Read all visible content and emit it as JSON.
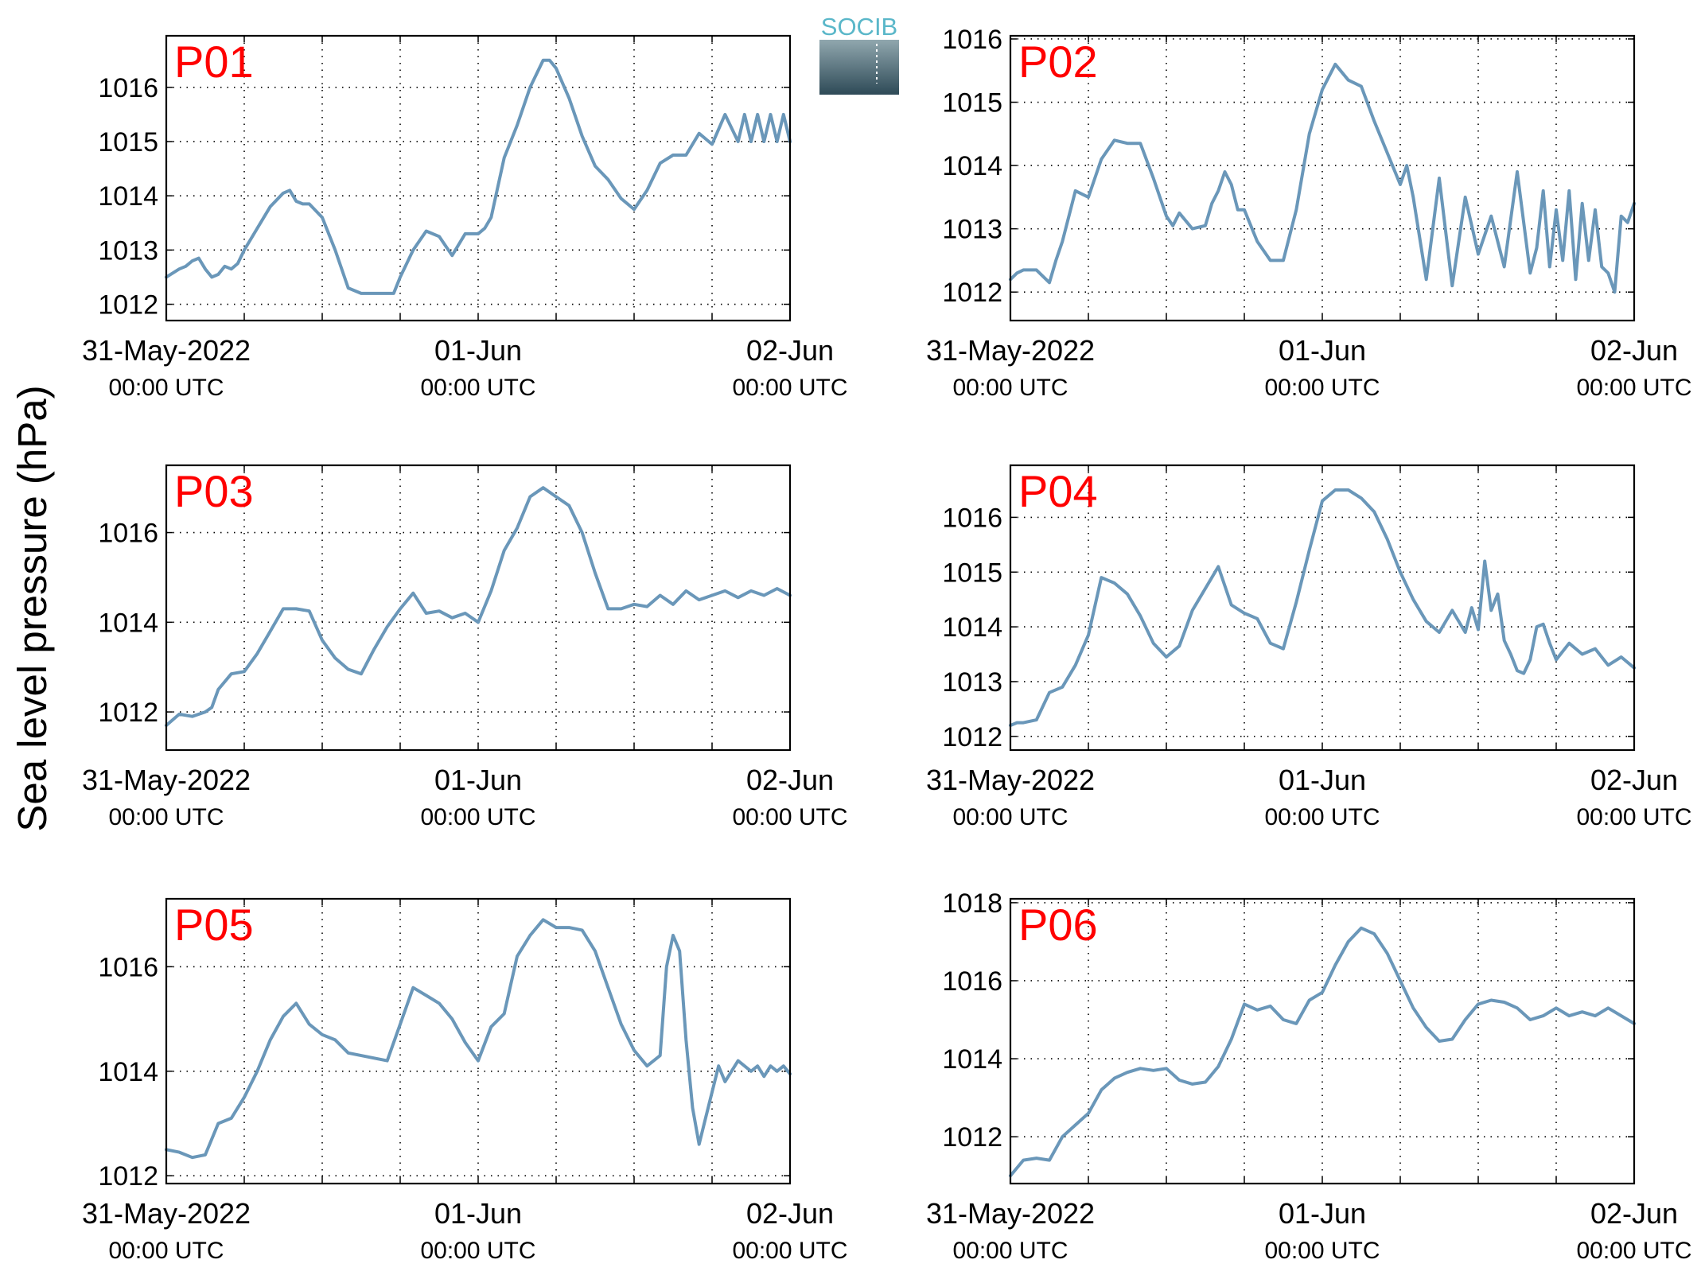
{
  "figure": {
    "ylabel": "Sea level pressure (hPa)",
    "logo_text": "SOCIB"
  },
  "colors": {
    "line": "#6a97b9",
    "panel_label": "#ff0000",
    "axis": "#000000",
    "grid": "#000000",
    "logo_top": "#5ab7c9",
    "logo_bottom": "#2e4a57"
  },
  "chart_data": [
    {
      "type": "line",
      "title": "P01",
      "x_ticks": [
        {
          "major": "31-May-2022",
          "minor": "00:00 UTC"
        },
        {
          "major": "01-Jun",
          "minor": "00:00 UTC"
        },
        {
          "major": "02-Jun",
          "minor": "00:00 UTC"
        }
      ],
      "xlim_hours": [
        0,
        48
      ],
      "yticks": [
        1012,
        1013,
        1014,
        1015,
        1016
      ],
      "ylim": [
        1011.7,
        1016.95
      ],
      "grid": true,
      "series": [
        {
          "x_hours": [
            0,
            1,
            1.5,
            2,
            2.5,
            3,
            3.5,
            4,
            4.5,
            5,
            5.5,
            6,
            7,
            8,
            9,
            9.5,
            10,
            10.5,
            11,
            12,
            13,
            14,
            15,
            16,
            17,
            17.5,
            18,
            19,
            20,
            21,
            22,
            23,
            24,
            24.5,
            25,
            26,
            27,
            28,
            29,
            29.5,
            30,
            31,
            32,
            33,
            34,
            35,
            36,
            37,
            38,
            39,
            40,
            41,
            42,
            43,
            44,
            44.5,
            45,
            45.5,
            46,
            46.5,
            47,
            47.5,
            48
          ],
          "y": [
            1012.5,
            1012.65,
            1012.7,
            1012.8,
            1012.85,
            1012.65,
            1012.5,
            1012.55,
            1012.7,
            1012.65,
            1012.75,
            1013.0,
            1013.4,
            1013.8,
            1014.05,
            1014.1,
            1013.9,
            1013.85,
            1013.85,
            1013.6,
            1013.0,
            1012.3,
            1012.2,
            1012.2,
            1012.2,
            1012.2,
            1012.5,
            1013.0,
            1013.35,
            1013.25,
            1012.9,
            1013.3,
            1013.3,
            1013.4,
            1013.6,
            1014.7,
            1015.3,
            1016.0,
            1016.5,
            1016.5,
            1016.35,
            1015.8,
            1015.1,
            1014.55,
            1014.3,
            1013.95,
            1013.75,
            1014.1,
            1014.6,
            1014.75,
            1014.75,
            1015.15,
            1014.95,
            1015.5,
            1015.0,
            1015.5,
            1015.0,
            1015.5,
            1015.0,
            1015.5,
            1015.0,
            1015.5,
            1015.0
          ]
        }
      ]
    },
    {
      "type": "line",
      "title": "P02",
      "x_ticks": [
        {
          "major": "31-May-2022",
          "minor": "00:00 UTC"
        },
        {
          "major": "01-Jun",
          "minor": "00:00 UTC"
        },
        {
          "major": "02-Jun",
          "minor": "00:00 UTC"
        }
      ],
      "xlim_hours": [
        0,
        48
      ],
      "yticks": [
        1012,
        1013,
        1014,
        1015,
        1016
      ],
      "ylim": [
        1011.55,
        1016.05
      ],
      "grid": true,
      "series": [
        {
          "x_hours": [
            0,
            0.5,
            1,
            2,
            3,
            3.5,
            4,
            5,
            6,
            7,
            8,
            9,
            10,
            11,
            12,
            12.5,
            13,
            14,
            15,
            15.5,
            16,
            16.5,
            17,
            17.5,
            18,
            19,
            20,
            21,
            22,
            23,
            24,
            25,
            26,
            27,
            28,
            29,
            30,
            30.5,
            31,
            32,
            33,
            34,
            35,
            36,
            37,
            38,
            39,
            40,
            40.5,
            41,
            41.5,
            42,
            42.5,
            43,
            43.5,
            44,
            44.5,
            45,
            45.5,
            46,
            46.5,
            47,
            47.5,
            48
          ],
          "y": [
            1012.2,
            1012.3,
            1012.35,
            1012.35,
            1012.15,
            1012.5,
            1012.8,
            1013.6,
            1013.5,
            1014.1,
            1014.4,
            1014.35,
            1014.35,
            1013.8,
            1013.2,
            1013.05,
            1013.25,
            1013.0,
            1013.05,
            1013.4,
            1013.6,
            1013.9,
            1013.7,
            1013.3,
            1013.3,
            1012.8,
            1012.5,
            1012.5,
            1013.3,
            1014.5,
            1015.2,
            1015.6,
            1015.35,
            1015.25,
            1014.7,
            1014.2,
            1013.7,
            1014.0,
            1013.5,
            1012.2,
            1013.8,
            1012.1,
            1013.5,
            1012.6,
            1013.2,
            1012.4,
            1013.9,
            1012.3,
            1012.7,
            1013.6,
            1012.4,
            1013.3,
            1012.5,
            1013.6,
            1012.2,
            1013.4,
            1012.5,
            1013.3,
            1012.4,
            1012.3,
            1012.0,
            1013.2,
            1013.1,
            1013.4
          ]
        }
      ]
    },
    {
      "type": "line",
      "title": "P03",
      "x_ticks": [
        {
          "major": "31-May-2022",
          "minor": "00:00 UTC"
        },
        {
          "major": "01-Jun",
          "minor": "00:00 UTC"
        },
        {
          "major": "02-Jun",
          "minor": "00:00 UTC"
        }
      ],
      "xlim_hours": [
        0,
        48
      ],
      "yticks": [
        1012,
        1014,
        1016
      ],
      "ylim": [
        1011.15,
        1017.5
      ],
      "grid": true,
      "series": [
        {
          "x_hours": [
            0,
            1,
            2,
            3,
            3.5,
            4,
            5,
            6,
            7,
            8,
            9,
            10,
            11,
            12,
            13,
            14,
            15,
            16,
            17,
            18,
            19,
            20,
            21,
            22,
            23,
            24,
            25,
            26,
            27,
            28,
            29,
            30,
            31,
            32,
            33,
            34,
            35,
            36,
            37,
            38,
            39,
            40,
            41,
            42,
            43,
            44,
            45,
            46,
            47,
            48
          ],
          "y": [
            1011.7,
            1011.95,
            1011.9,
            1012.0,
            1012.1,
            1012.5,
            1012.85,
            1012.9,
            1013.3,
            1013.8,
            1014.3,
            1014.3,
            1014.25,
            1013.6,
            1013.2,
            1012.95,
            1012.85,
            1013.4,
            1013.9,
            1014.3,
            1014.65,
            1014.2,
            1014.25,
            1014.1,
            1014.2,
            1014.0,
            1014.7,
            1015.6,
            1016.1,
            1016.8,
            1017.0,
            1016.8,
            1016.6,
            1016.0,
            1015.1,
            1014.3,
            1014.3,
            1014.4,
            1014.35,
            1014.6,
            1014.4,
            1014.7,
            1014.5,
            1014.6,
            1014.7,
            1014.55,
            1014.7,
            1014.6,
            1014.75,
            1014.6
          ]
        }
      ]
    },
    {
      "type": "line",
      "title": "P04",
      "x_ticks": [
        {
          "major": "31-May-2022",
          "minor": "00:00 UTC"
        },
        {
          "major": "01-Jun",
          "minor": "00:00 UTC"
        },
        {
          "major": "02-Jun",
          "minor": "00:00 UTC"
        }
      ],
      "xlim_hours": [
        0,
        48
      ],
      "yticks": [
        1012,
        1013,
        1014,
        1015,
        1016
      ],
      "ylim": [
        1011.75,
        1016.95
      ],
      "grid": true,
      "series": [
        {
          "x_hours": [
            0,
            0.5,
            1,
            2,
            3,
            4,
            5,
            6,
            7,
            8,
            9,
            10,
            11,
            12,
            13,
            14,
            15,
            16,
            17,
            18,
            19,
            20,
            21,
            22,
            23,
            24,
            25,
            26,
            27,
            28,
            29,
            30,
            31,
            32,
            33,
            34,
            35,
            35.5,
            36,
            36.5,
            37,
            37.5,
            38,
            38.5,
            39,
            39.5,
            40,
            40.5,
            41,
            41.5,
            42,
            43,
            44,
            45,
            46,
            47,
            48
          ],
          "y": [
            1012.2,
            1012.25,
            1012.25,
            1012.3,
            1012.8,
            1012.9,
            1013.3,
            1013.85,
            1014.9,
            1014.8,
            1014.6,
            1014.2,
            1013.7,
            1013.45,
            1013.65,
            1014.3,
            1014.7,
            1015.1,
            1014.4,
            1014.25,
            1014.15,
            1013.7,
            1013.6,
            1014.45,
            1015.4,
            1016.3,
            1016.5,
            1016.5,
            1016.35,
            1016.1,
            1015.6,
            1015.0,
            1014.5,
            1014.1,
            1013.9,
            1014.3,
            1013.9,
            1014.35,
            1013.95,
            1015.2,
            1014.3,
            1014.6,
            1013.75,
            1013.5,
            1013.2,
            1013.15,
            1013.4,
            1014.0,
            1014.05,
            1013.7,
            1013.4,
            1013.7,
            1013.5,
            1013.6,
            1013.3,
            1013.45,
            1013.25
          ]
        }
      ]
    },
    {
      "type": "line",
      "title": "P05",
      "x_ticks": [
        {
          "major": "31-May-2022",
          "minor": "00:00 UTC"
        },
        {
          "major": "01-Jun",
          "minor": "00:00 UTC"
        },
        {
          "major": "02-Jun",
          "minor": "00:00 UTC"
        }
      ],
      "xlim_hours": [
        0,
        48
      ],
      "yticks": [
        1012,
        1014,
        1016
      ],
      "ylim": [
        1011.85,
        1017.3
      ],
      "grid": true,
      "series": [
        {
          "x_hours": [
            0,
            1,
            2,
            3,
            4,
            5,
            6,
            7,
            8,
            9,
            10,
            11,
            12,
            13,
            14,
            15,
            16,
            17,
            18,
            19,
            20,
            21,
            22,
            23,
            24,
            25,
            26,
            27,
            28,
            29,
            30,
            31,
            32,
            33,
            34,
            35,
            36,
            37,
            38,
            38.5,
            39,
            39.5,
            40,
            40.5,
            41,
            41.5,
            42,
            42.5,
            43,
            44,
            45,
            45.5,
            46,
            46.5,
            47,
            47.5,
            48
          ],
          "y": [
            1012.5,
            1012.45,
            1012.35,
            1012.4,
            1013.0,
            1013.1,
            1013.5,
            1014.0,
            1014.6,
            1015.05,
            1015.3,
            1014.9,
            1014.7,
            1014.6,
            1014.35,
            1014.3,
            1014.25,
            1014.2,
            1014.9,
            1015.6,
            1015.45,
            1015.3,
            1015.0,
            1014.55,
            1014.2,
            1014.85,
            1015.1,
            1016.2,
            1016.6,
            1016.9,
            1016.75,
            1016.75,
            1016.7,
            1016.3,
            1015.6,
            1014.9,
            1014.4,
            1014.1,
            1014.3,
            1016.0,
            1016.6,
            1016.3,
            1014.6,
            1013.3,
            1012.6,
            1013.1,
            1013.6,
            1014.1,
            1013.8,
            1014.2,
            1014.0,
            1014.1,
            1013.9,
            1014.1,
            1014.0,
            1014.1,
            1013.95
          ]
        }
      ]
    },
    {
      "type": "line",
      "title": "P06",
      "x_ticks": [
        {
          "major": "31-May-2022",
          "minor": "00:00 UTC"
        },
        {
          "major": "01-Jun",
          "minor": "00:00 UTC"
        },
        {
          "major": "02-Jun",
          "minor": "00:00 UTC"
        }
      ],
      "xlim_hours": [
        0,
        48
      ],
      "yticks": [
        1012,
        1014,
        1016,
        1018
      ],
      "ylim": [
        1010.8,
        1018.1
      ],
      "grid": true,
      "series": [
        {
          "x_hours": [
            0,
            1,
            2,
            3,
            4,
            5,
            6,
            7,
            8,
            9,
            10,
            11,
            12,
            13,
            14,
            15,
            16,
            17,
            18,
            19,
            20,
            21,
            22,
            23,
            24,
            25,
            26,
            27,
            28,
            29,
            30,
            31,
            32,
            33,
            34,
            35,
            36,
            37,
            38,
            39,
            40,
            41,
            42,
            43,
            44,
            45,
            46,
            47,
            48
          ],
          "y": [
            1011.0,
            1011.4,
            1011.45,
            1011.4,
            1012.0,
            1012.3,
            1012.6,
            1013.2,
            1013.5,
            1013.65,
            1013.75,
            1013.7,
            1013.75,
            1013.45,
            1013.35,
            1013.4,
            1013.8,
            1014.5,
            1015.4,
            1015.25,
            1015.35,
            1015.0,
            1014.9,
            1015.5,
            1015.7,
            1016.4,
            1017.0,
            1017.35,
            1017.2,
            1016.7,
            1016.0,
            1015.3,
            1014.8,
            1014.45,
            1014.5,
            1015.0,
            1015.4,
            1015.5,
            1015.45,
            1015.3,
            1015.0,
            1015.1,
            1015.3,
            1015.1,
            1015.2,
            1015.1,
            1015.3,
            1015.1,
            1014.9
          ]
        }
      ]
    }
  ]
}
